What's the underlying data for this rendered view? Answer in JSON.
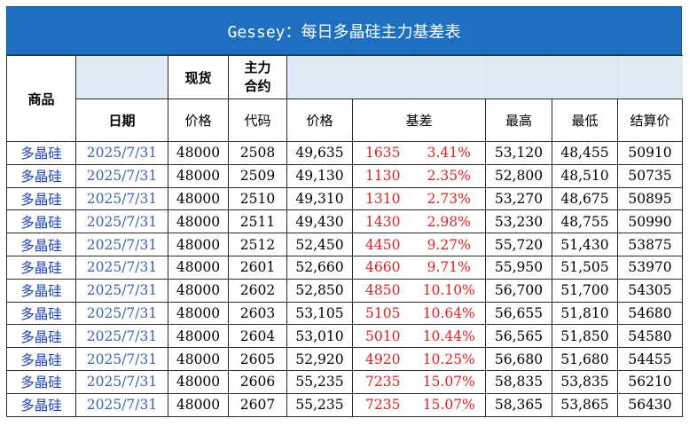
{
  "title": "Gessey：每日多晶硅主力基差表",
  "headers": {
    "product": "商品",
    "date": "日期",
    "spot": "现货",
    "spot_price": "价格",
    "main_contract_line1": "主力",
    "main_contract_line2": "合约",
    "code": "代码",
    "price": "价格",
    "basis": "基差",
    "high": "最高",
    "low": "最低",
    "settle": "结算价"
  },
  "rows": [
    {
      "product": "多晶硅",
      "date": "2025/7/31",
      "spot": "48000",
      "code": "2508",
      "price": "49,635",
      "basis": "1635",
      "basis_pct": "3.41%",
      "high": "53,120",
      "low": "48,455",
      "settle": "50910"
    },
    {
      "product": "多晶硅",
      "date": "2025/7/31",
      "spot": "48000",
      "code": "2509",
      "price": "49,130",
      "basis": "1130",
      "basis_pct": "2.35%",
      "high": "52,800",
      "low": "48,510",
      "settle": "50735"
    },
    {
      "product": "多晶硅",
      "date": "2025/7/31",
      "spot": "48000",
      "code": "2510",
      "price": "49,310",
      "basis": "1310",
      "basis_pct": "2.73%",
      "high": "53,270",
      "low": "48,675",
      "settle": "50895"
    },
    {
      "product": "多晶硅",
      "date": "2025/7/31",
      "spot": "48000",
      "code": "2511",
      "price": "49,430",
      "basis": "1430",
      "basis_pct": "2.98%",
      "high": "53,230",
      "low": "48,755",
      "settle": "50990"
    },
    {
      "product": "多晶硅",
      "date": "2025/7/31",
      "spot": "48000",
      "code": "2512",
      "price": "52,450",
      "basis": "4450",
      "basis_pct": "9.27%",
      "high": "55,720",
      "low": "51,430",
      "settle": "53875"
    },
    {
      "product": "多晶硅",
      "date": "2025/7/31",
      "spot": "48000",
      "code": "2601",
      "price": "52,660",
      "basis": "4660",
      "basis_pct": "9.71%",
      "high": "55,950",
      "low": "51,505",
      "settle": "53970"
    },
    {
      "product": "多晶硅",
      "date": "2025/7/31",
      "spot": "48000",
      "code": "2602",
      "price": "52,850",
      "basis": "4850",
      "basis_pct": "10.10%",
      "high": "56,700",
      "low": "51,700",
      "settle": "54305"
    },
    {
      "product": "多晶硅",
      "date": "2025/7/31",
      "spot": "48000",
      "code": "2603",
      "price": "53,105",
      "basis": "5105",
      "basis_pct": "10.64%",
      "high": "56,655",
      "low": "51,810",
      "settle": "54680"
    },
    {
      "product": "多晶硅",
      "date": "2025/7/31",
      "spot": "48000",
      "code": "2604",
      "price": "53,010",
      "basis": "5010",
      "basis_pct": "10.44%",
      "high": "56,565",
      "low": "51,850",
      "settle": "54580"
    },
    {
      "product": "多晶硅",
      "date": "2025/7/31",
      "spot": "48000",
      "code": "2605",
      "price": "52,920",
      "basis": "4920",
      "basis_pct": "10.25%",
      "high": "56,680",
      "low": "51,680",
      "settle": "54455"
    },
    {
      "product": "多晶硅",
      "date": "2025/7/31",
      "spot": "48000",
      "code": "2606",
      "price": "55,235",
      "basis": "7235",
      "basis_pct": "15.07%",
      "high": "58,835",
      "low": "53,835",
      "settle": "56210"
    },
    {
      "product": "多晶硅",
      "date": "2025/7/31",
      "spot": "48000",
      "code": "2607",
      "price": "55,235",
      "basis": "7235",
      "basis_pct": "15.07%",
      "high": "58,365",
      "low": "53,865",
      "settle": "56430"
    }
  ],
  "colors": {
    "title_bg": "#1f6fc0",
    "header_bg": "#deebf7",
    "product_text": "#1a3fbf",
    "date_text": "#3c5fb0",
    "basis_text": "#e02020"
  }
}
